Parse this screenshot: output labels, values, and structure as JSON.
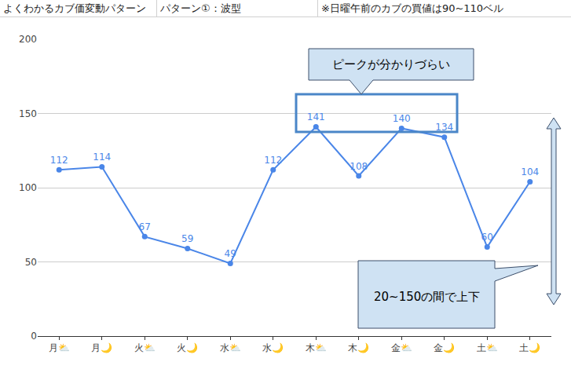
{
  "chart_data": {
    "type": "line",
    "title": "よくわかるカブ価変動パターン",
    "subtitle": "パターン①：波型",
    "categories": [
      "月⛅",
      "月🌙",
      "火⛅",
      "火🌙",
      "水⛅",
      "水🌙",
      "木⛅",
      "木🌙",
      "金⛅",
      "金🌙",
      "土⛅",
      "土🌙"
    ],
    "values": [
      112,
      114,
      67,
      59,
      49,
      112,
      141,
      108,
      140,
      134,
      60,
      104
    ],
    "color": "#4a86e8",
    "ylim": [
      0,
      200
    ],
    "yticks": [
      0,
      50,
      100,
      150,
      200
    ],
    "grid": true,
    "data_labels": true,
    "marker": "circle",
    "annotations": [
      "※日曜午前のカブの買値は90~110ベル",
      "ピークが分かりづらい",
      "20~150の間で上下"
    ]
  }
}
